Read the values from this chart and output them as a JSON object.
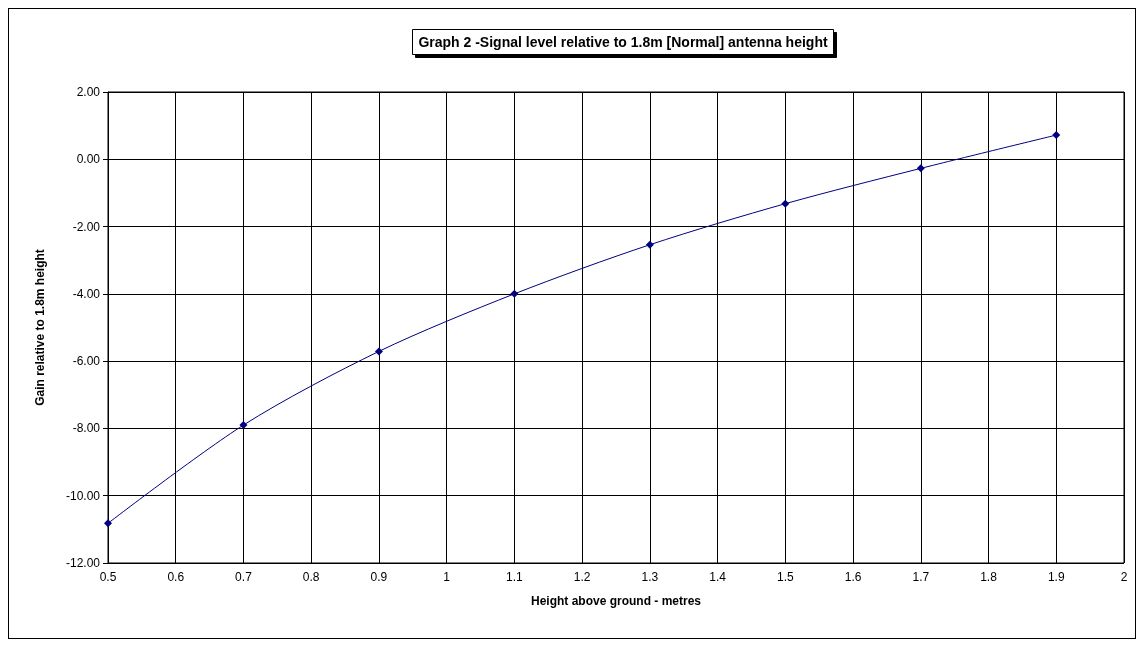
{
  "chart_data": {
    "type": "line",
    "title": "Graph 2 -Signal level relative to 1.8m [Normal] antenna height",
    "xlabel": "Height above ground - metres",
    "ylabel": "Gain relative to 1.8m height",
    "x": [
      0.5,
      0.7,
      0.9,
      1.1,
      1.3,
      1.5,
      1.7,
      1.9
    ],
    "series": [
      {
        "color": "#000080",
        "values": [
          -10.82,
          -7.9,
          -5.71,
          -4.0,
          -2.54,
          -1.32,
          -0.27,
          0.72
        ]
      }
    ],
    "xlim": [
      0.5,
      2
    ],
    "xticks": [
      0.5,
      0.6,
      0.7,
      0.8,
      0.9,
      1,
      1.1,
      1.2,
      1.3,
      1.4,
      1.5,
      1.6,
      1.7,
      1.8,
      1.9,
      2
    ],
    "ylim": [
      -12,
      2
    ],
    "yticks": [
      {
        "value": -12,
        "label": "-12.00"
      },
      {
        "value": -10,
        "label": "-10.00"
      },
      {
        "value": -8,
        "label": "-8.00"
      },
      {
        "value": -6,
        "label": "-6.00"
      },
      {
        "value": -4,
        "label": "-4.00"
      },
      {
        "value": -2,
        "label": "-2.00"
      },
      {
        "value": 0,
        "label": "0.00"
      },
      {
        "value": 2,
        "label": "2.00"
      }
    ],
    "grid": true,
    "marker": "diamond",
    "line_style": "solid"
  }
}
